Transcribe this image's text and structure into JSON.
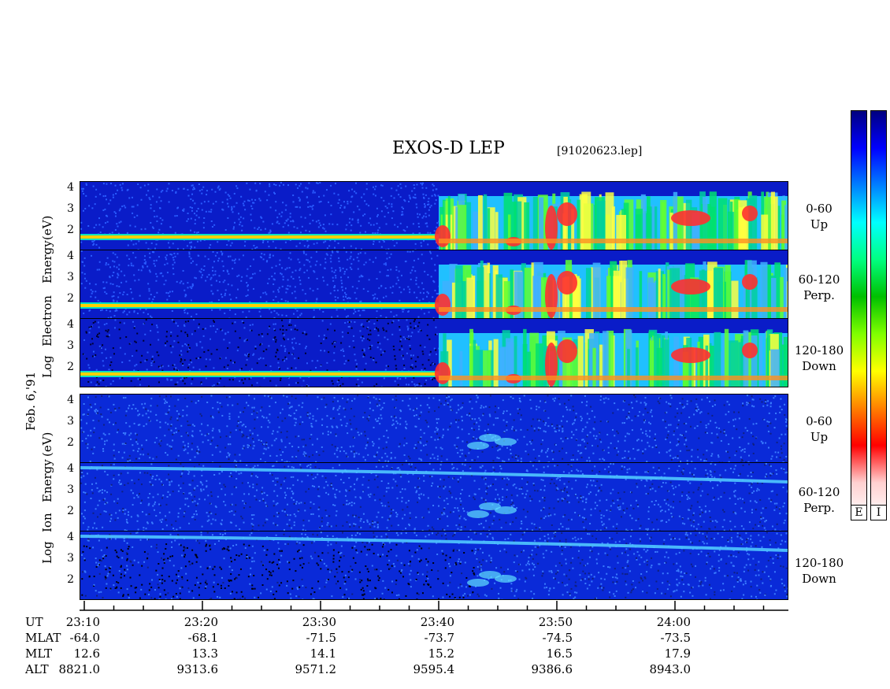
{
  "title": "EXOS-D LEP",
  "file": "[91020623.lep]",
  "date_label": "Feb. 6,'91",
  "electron_axis": {
    "log": "Log",
    "species": "Electron",
    "energy": "Energy",
    "unit": "(eV)"
  },
  "ion_axis": {
    "log": "Log",
    "species": "Ion",
    "energy": "Energy",
    "unit": "(eV)"
  },
  "panels": [
    {
      "id": "e-0-60",
      "species": "electron",
      "angle_line1": "0-60",
      "angle_line2": "Up"
    },
    {
      "id": "e-60-120",
      "species": "electron",
      "angle_line1": "60-120",
      "angle_line2": "Perp."
    },
    {
      "id": "e-120-180",
      "species": "electron",
      "angle_line1": "120-180",
      "angle_line2": "Down"
    },
    {
      "id": "i-0-60",
      "species": "ion",
      "angle_line1": "0-60",
      "angle_line2": "Up"
    },
    {
      "id": "i-60-120",
      "species": "ion",
      "angle_line1": "60-120",
      "angle_line2": "Perp."
    },
    {
      "id": "i-120-180",
      "species": "ion",
      "angle_line1": "120-180",
      "angle_line2": "Down"
    }
  ],
  "y_ticks": [
    "4",
    "3",
    "2"
  ],
  "colorbar": {
    "left_label": "E",
    "right_label": "I",
    "colors": [
      "#ffffff",
      "#ffd0d0",
      "#ff0000",
      "#ff8000",
      "#ffff00",
      "#80ff00",
      "#00c000",
      "#00ff80",
      "#00ffff",
      "#0080ff",
      "#0000ff",
      "#000080"
    ]
  },
  "chart_data": {
    "type": "heatmap",
    "title": "EXOS-D LEP",
    "xlabel": "UT",
    "ylabel": "Log Energy (eV)",
    "ylim": [
      1,
      4.3
    ],
    "x_ticks": [
      "23:10",
      "23:20",
      "23:30",
      "23:40",
      "23:50",
      "24:00"
    ],
    "orbit": {
      "rows": [
        "UT",
        "MLAT",
        "MLT",
        "ALT"
      ],
      "columns": [
        {
          "UT": "23:10",
          "MLAT": "-64.0",
          "MLT": "12.6",
          "ALT": "8821.0"
        },
        {
          "UT": "23:20",
          "MLAT": "-68.1",
          "MLT": "13.3",
          "ALT": "9313.6"
        },
        {
          "UT": "23:30",
          "MLAT": "-71.5",
          "MLT": "14.1",
          "ALT": "9571.2"
        },
        {
          "UT": "23:40",
          "MLAT": "-73.7",
          "MLT": "15.2",
          "ALT": "9595.4"
        },
        {
          "UT": "23:50",
          "MLAT": "-74.5",
          "MLT": "16.5",
          "ALT": "9386.6"
        },
        {
          "UT": "24:00",
          "MLAT": "-73.5",
          "MLT": "17.9",
          "ALT": "8943.0"
        }
      ]
    }
  }
}
